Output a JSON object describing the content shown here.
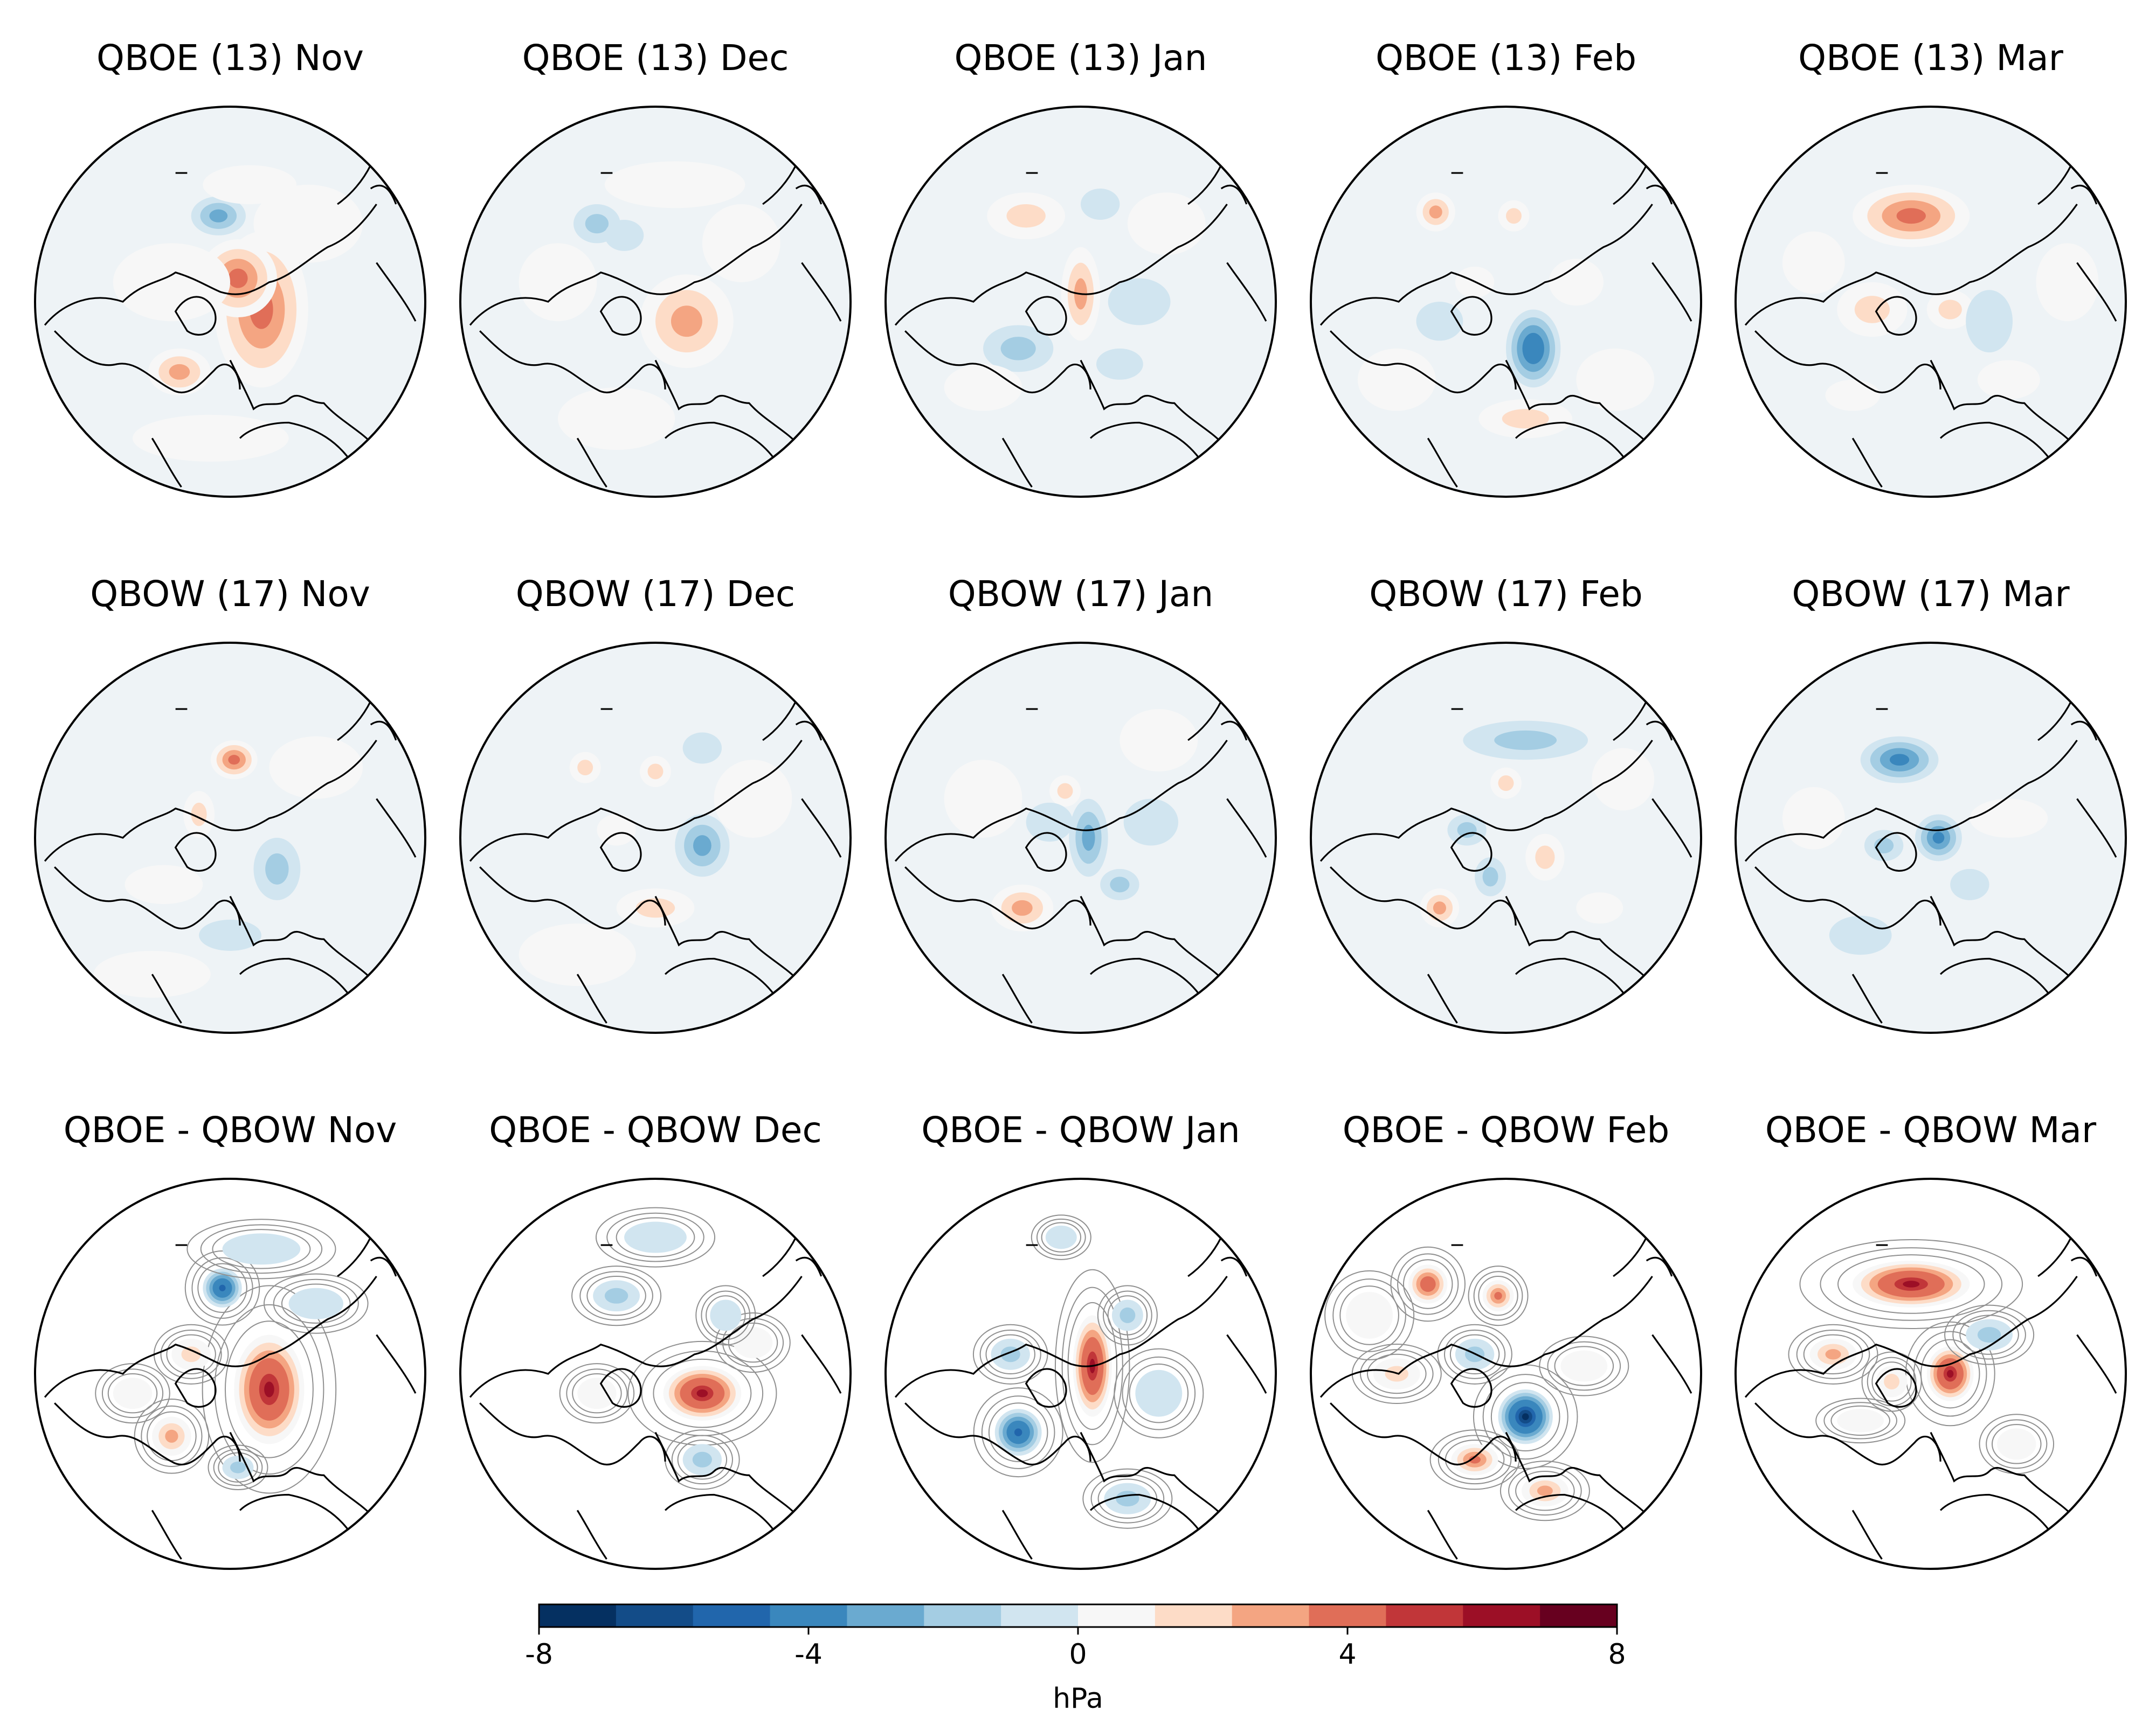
{
  "panels": [
    {
      "title": "QBOE (13) Nov",
      "blobs": [
        [
          0.58,
          0.52,
          0.12,
          0.2,
          0.55
        ],
        [
          0.52,
          0.44,
          0.1,
          0.1,
          0.45
        ],
        [
          0.47,
          0.28,
          0.07,
          0.05,
          -0.35
        ],
        [
          0.37,
          0.68,
          0.08,
          0.06,
          0.35
        ],
        [
          0.55,
          0.2,
          0.12,
          0.05,
          0.15
        ],
        [
          0.7,
          0.3,
          0.14,
          0.1,
          0.1
        ],
        [
          0.35,
          0.45,
          0.15,
          0.1,
          0.1
        ],
        [
          0.45,
          0.85,
          0.2,
          0.06,
          0.08
        ]
      ]
    },
    {
      "title": "QBOE (13) Dec",
      "blobs": [
        [
          0.58,
          0.55,
          0.12,
          0.12,
          0.4
        ],
        [
          0.35,
          0.3,
          0.06,
          0.05,
          -0.2
        ],
        [
          0.42,
          0.33,
          0.05,
          0.04,
          -0.15
        ],
        [
          0.55,
          0.2,
          0.18,
          0.06,
          0.1
        ],
        [
          0.72,
          0.35,
          0.1,
          0.1,
          0.1
        ],
        [
          0.25,
          0.45,
          0.1,
          0.1,
          0.08
        ],
        [
          0.4,
          0.8,
          0.15,
          0.08,
          0.08
        ]
      ]
    },
    {
      "title": "QBOE (13) Jan",
      "blobs": [
        [
          0.5,
          0.48,
          0.05,
          0.12,
          0.4
        ],
        [
          0.34,
          0.62,
          0.09,
          0.06,
          -0.25
        ],
        [
          0.36,
          0.28,
          0.1,
          0.06,
          0.2
        ],
        [
          0.6,
          0.66,
          0.06,
          0.04,
          -0.15
        ],
        [
          0.55,
          0.25,
          0.05,
          0.04,
          -0.15
        ],
        [
          0.65,
          0.5,
          0.08,
          0.06,
          -0.1
        ],
        [
          0.25,
          0.72,
          0.1,
          0.06,
          0.1
        ],
        [
          0.72,
          0.3,
          0.1,
          0.08,
          0.08
        ]
      ]
    },
    {
      "title": "QBOE (13) Feb",
      "blobs": [
        [
          0.57,
          0.62,
          0.07,
          0.1,
          -0.65
        ],
        [
          0.32,
          0.27,
          0.05,
          0.05,
          0.35
        ],
        [
          0.52,
          0.28,
          0.04,
          0.04,
          0.25
        ],
        [
          0.55,
          0.8,
          0.12,
          0.05,
          0.25
        ],
        [
          0.33,
          0.55,
          0.06,
          0.05,
          -0.15
        ],
        [
          0.68,
          0.45,
          0.07,
          0.06,
          0.15
        ],
        [
          0.42,
          0.45,
          0.05,
          0.04,
          0.15
        ],
        [
          0.22,
          0.7,
          0.1,
          0.08,
          0.08
        ],
        [
          0.78,
          0.7,
          0.1,
          0.08,
          0.08
        ]
      ]
    },
    {
      "title": "QBOE (13) Mar",
      "blobs": [
        [
          0.45,
          0.28,
          0.15,
          0.08,
          0.55
        ],
        [
          0.35,
          0.52,
          0.09,
          0.07,
          0.3
        ],
        [
          0.55,
          0.52,
          0.06,
          0.05,
          0.25
        ],
        [
          0.65,
          0.55,
          0.06,
          0.08,
          -0.15
        ],
        [
          0.3,
          0.74,
          0.07,
          0.04,
          0.15
        ],
        [
          0.7,
          0.7,
          0.08,
          0.05,
          0.1
        ],
        [
          0.2,
          0.4,
          0.08,
          0.08,
          0.1
        ],
        [
          0.85,
          0.45,
          0.08,
          0.1,
          0.08
        ]
      ]
    },
    {
      "title": "QBOW (17) Nov",
      "blobs": [
        [
          0.51,
          0.3,
          0.06,
          0.05,
          0.5
        ],
        [
          0.62,
          0.58,
          0.06,
          0.08,
          -0.3
        ],
        [
          0.42,
          0.44,
          0.04,
          0.06,
          0.2
        ],
        [
          0.33,
          0.62,
          0.1,
          0.05,
          0.12
        ],
        [
          0.5,
          0.75,
          0.08,
          0.04,
          -0.1
        ],
        [
          0.72,
          0.32,
          0.12,
          0.08,
          0.08
        ],
        [
          0.3,
          0.85,
          0.15,
          0.06,
          0.08
        ]
      ]
    },
    {
      "title": "QBOW (17) Dec",
      "blobs": [
        [
          0.62,
          0.52,
          0.07,
          0.08,
          -0.35
        ],
        [
          0.5,
          0.68,
          0.1,
          0.05,
          0.25
        ],
        [
          0.5,
          0.33,
          0.04,
          0.04,
          0.25
        ],
        [
          0.32,
          0.32,
          0.04,
          0.04,
          0.25
        ],
        [
          0.4,
          0.48,
          0.05,
          0.04,
          0.15
        ],
        [
          0.62,
          0.27,
          0.05,
          0.04,
          -0.1
        ],
        [
          0.75,
          0.4,
          0.1,
          0.1,
          0.08
        ],
        [
          0.3,
          0.8,
          0.15,
          0.08,
          0.08
        ]
      ]
    },
    {
      "title": "QBOW (17) Jan",
      "blobs": [
        [
          0.35,
          0.68,
          0.08,
          0.06,
          0.4
        ],
        [
          0.52,
          0.5,
          0.05,
          0.1,
          -0.35
        ],
        [
          0.46,
          0.38,
          0.04,
          0.04,
          0.2
        ],
        [
          0.6,
          0.62,
          0.05,
          0.04,
          -0.2
        ],
        [
          0.68,
          0.46,
          0.07,
          0.06,
          -0.15
        ],
        [
          0.42,
          0.46,
          0.06,
          0.05,
          -0.1
        ],
        [
          0.25,
          0.4,
          0.1,
          0.1,
          0.08
        ],
        [
          0.7,
          0.25,
          0.1,
          0.08,
          0.08
        ]
      ]
    },
    {
      "title": "QBOW (17) Feb",
      "blobs": [
        [
          0.55,
          0.25,
          0.16,
          0.05,
          -0.25
        ],
        [
          0.6,
          0.55,
          0.05,
          0.06,
          0.3
        ],
        [
          0.46,
          0.6,
          0.04,
          0.05,
          -0.3
        ],
        [
          0.33,
          0.68,
          0.05,
          0.05,
          0.35
        ],
        [
          0.4,
          0.48,
          0.05,
          0.04,
          -0.25
        ],
        [
          0.5,
          0.36,
          0.04,
          0.04,
          0.2
        ],
        [
          0.74,
          0.68,
          0.06,
          0.04,
          0.15
        ],
        [
          0.8,
          0.35,
          0.08,
          0.08,
          0.08
        ]
      ]
    },
    {
      "title": "QBOW (17) Mar",
      "blobs": [
        [
          0.42,
          0.3,
          0.1,
          0.06,
          -0.5
        ],
        [
          0.52,
          0.5,
          0.06,
          0.06,
          -0.45
        ],
        [
          0.38,
          0.52,
          0.05,
          0.04,
          -0.25
        ],
        [
          0.7,
          0.45,
          0.1,
          0.05,
          0.15
        ],
        [
          0.6,
          0.62,
          0.05,
          0.04,
          -0.15
        ],
        [
          0.32,
          0.75,
          0.08,
          0.05,
          -0.1
        ],
        [
          0.2,
          0.45,
          0.08,
          0.08,
          0.08
        ]
      ]
    },
    {
      "title": "QBOE - QBOW Nov",
      "blobs": [
        [
          0.6,
          0.54,
          0.09,
          0.14,
          0.82
        ],
        [
          0.48,
          0.28,
          0.05,
          0.05,
          -0.8
        ],
        [
          0.35,
          0.66,
          0.05,
          0.05,
          0.4
        ],
        [
          0.52,
          0.74,
          0.04,
          0.03,
          -0.25
        ],
        [
          0.72,
          0.32,
          0.07,
          0.04,
          -0.15
        ],
        [
          0.25,
          0.55,
          0.05,
          0.04,
          0.12
        ],
        [
          0.4,
          0.45,
          0.05,
          0.04,
          0.2
        ],
        [
          0.58,
          0.18,
          0.1,
          0.04,
          -0.08
        ]
      ]
    },
    {
      "title": "QBOE - QBOW Dec",
      "blobs": [
        [
          0.62,
          0.55,
          0.1,
          0.07,
          0.85
        ],
        [
          0.4,
          0.3,
          0.06,
          0.04,
          -0.3
        ],
        [
          0.62,
          0.72,
          0.05,
          0.04,
          -0.2
        ],
        [
          0.75,
          0.42,
          0.05,
          0.04,
          0.15
        ],
        [
          0.68,
          0.35,
          0.04,
          0.04,
          -0.15
        ],
        [
          0.35,
          0.55,
          0.05,
          0.04,
          0.1
        ],
        [
          0.5,
          0.15,
          0.08,
          0.04,
          -0.08
        ]
      ]
    },
    {
      "title": "QBOE - QBOW Jan",
      "blobs": [
        [
          0.53,
          0.48,
          0.05,
          0.13,
          0.88
        ],
        [
          0.34,
          0.65,
          0.06,
          0.06,
          -0.8
        ],
        [
          0.32,
          0.45,
          0.05,
          0.04,
          -0.25
        ],
        [
          0.62,
          0.35,
          0.04,
          0.04,
          -0.2
        ],
        [
          0.7,
          0.55,
          0.06,
          0.06,
          -0.15
        ],
        [
          0.62,
          0.82,
          0.06,
          0.04,
          -0.2
        ],
        [
          0.45,
          0.15,
          0.04,
          0.03,
          -0.1
        ]
      ]
    },
    {
      "title": "QBOE - QBOW Feb",
      "blobs": [
        [
          0.55,
          0.61,
          0.07,
          0.07,
          -0.95
        ],
        [
          0.3,
          0.27,
          0.05,
          0.05,
          0.65
        ],
        [
          0.48,
          0.3,
          0.04,
          0.04,
          0.5
        ],
        [
          0.42,
          0.72,
          0.06,
          0.04,
          0.55
        ],
        [
          0.6,
          0.8,
          0.06,
          0.04,
          0.4
        ],
        [
          0.22,
          0.5,
          0.06,
          0.04,
          0.25
        ],
        [
          0.42,
          0.45,
          0.05,
          0.04,
          -0.2
        ],
        [
          0.7,
          0.48,
          0.06,
          0.04,
          0.15
        ],
        [
          0.15,
          0.35,
          0.06,
          0.06,
          0.15
        ]
      ]
    },
    {
      "title": "QBOE - QBOW Mar",
      "blobs": [
        [
          0.45,
          0.27,
          0.15,
          0.06,
          0.85
        ],
        [
          0.55,
          0.5,
          0.06,
          0.07,
          0.82
        ],
        [
          0.25,
          0.45,
          0.06,
          0.04,
          0.4
        ],
        [
          0.4,
          0.52,
          0.04,
          0.04,
          0.3
        ],
        [
          0.65,
          0.4,
          0.06,
          0.04,
          -0.3
        ],
        [
          0.32,
          0.62,
          0.06,
          0.03,
          0.15
        ],
        [
          0.72,
          0.68,
          0.05,
          0.04,
          0.15
        ]
      ]
    }
  ],
  "colorbar": {
    "ticks": [
      "-8",
      "-4",
      "0",
      "4",
      "8"
    ],
    "label": "hPa",
    "colors": [
      "#053061",
      "#134c88",
      "#2166ac",
      "#3a87bd",
      "#6aaad0",
      "#a4cde3",
      "#d1e5f0",
      "#f7f7f7",
      "#fddcc7",
      "#f4a582",
      "#e06e58",
      "#c13639",
      "#9c0f26",
      "#67001f"
    ],
    "neutral_color": "#eef3f6",
    "contour_color": "#909090"
  }
}
